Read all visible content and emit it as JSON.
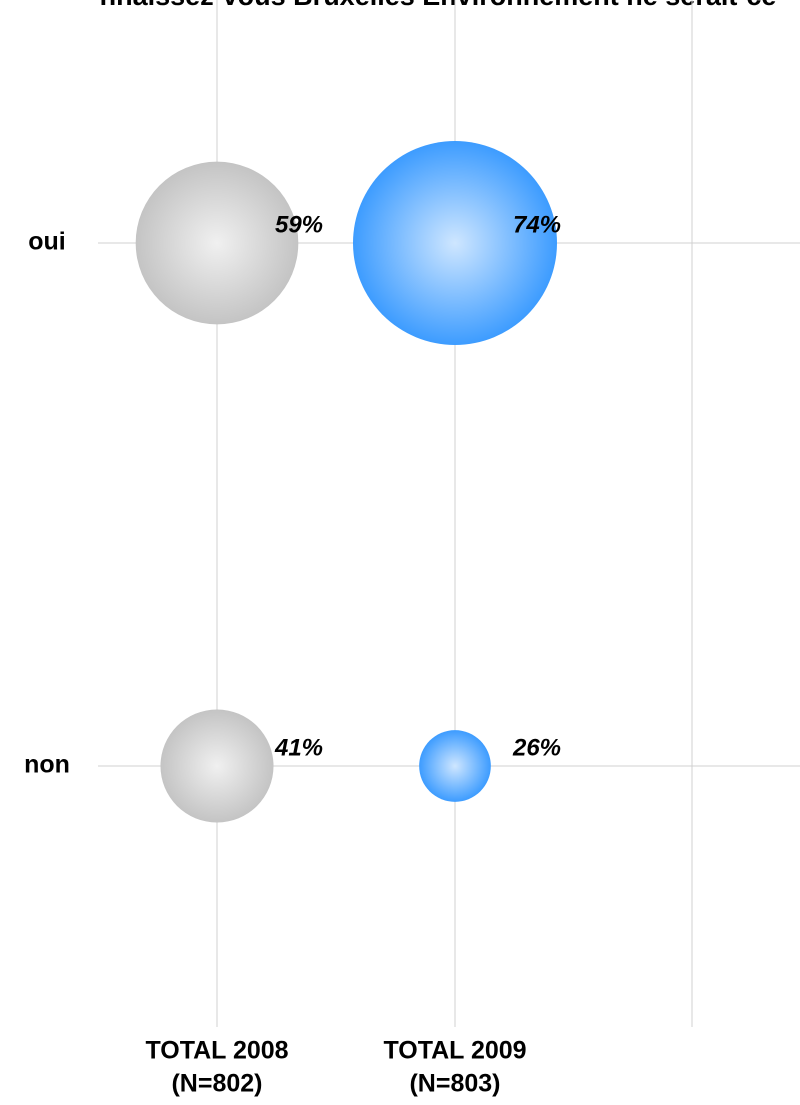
{
  "chart_data": {
    "type": "bubble",
    "title": "nnaissez-vous Bruxelles Environnement ne serait-ce",
    "x_categories": [
      [
        "TOTAL 2008",
        "(N=802)"
      ],
      [
        "TOTAL 2009",
        "(N=803)"
      ],
      null
    ],
    "y_categories": [
      "oui",
      "non"
    ],
    "series": [
      {
        "color": "#c4c4c4",
        "values": [
          59,
          41
        ],
        "value_labels": [
          "59%",
          "41%"
        ]
      },
      {
        "color": "#3d9cff",
        "values": [
          74,
          26
        ],
        "value_labels": [
          "74%",
          "26%"
        ]
      }
    ],
    "grid": true
  }
}
